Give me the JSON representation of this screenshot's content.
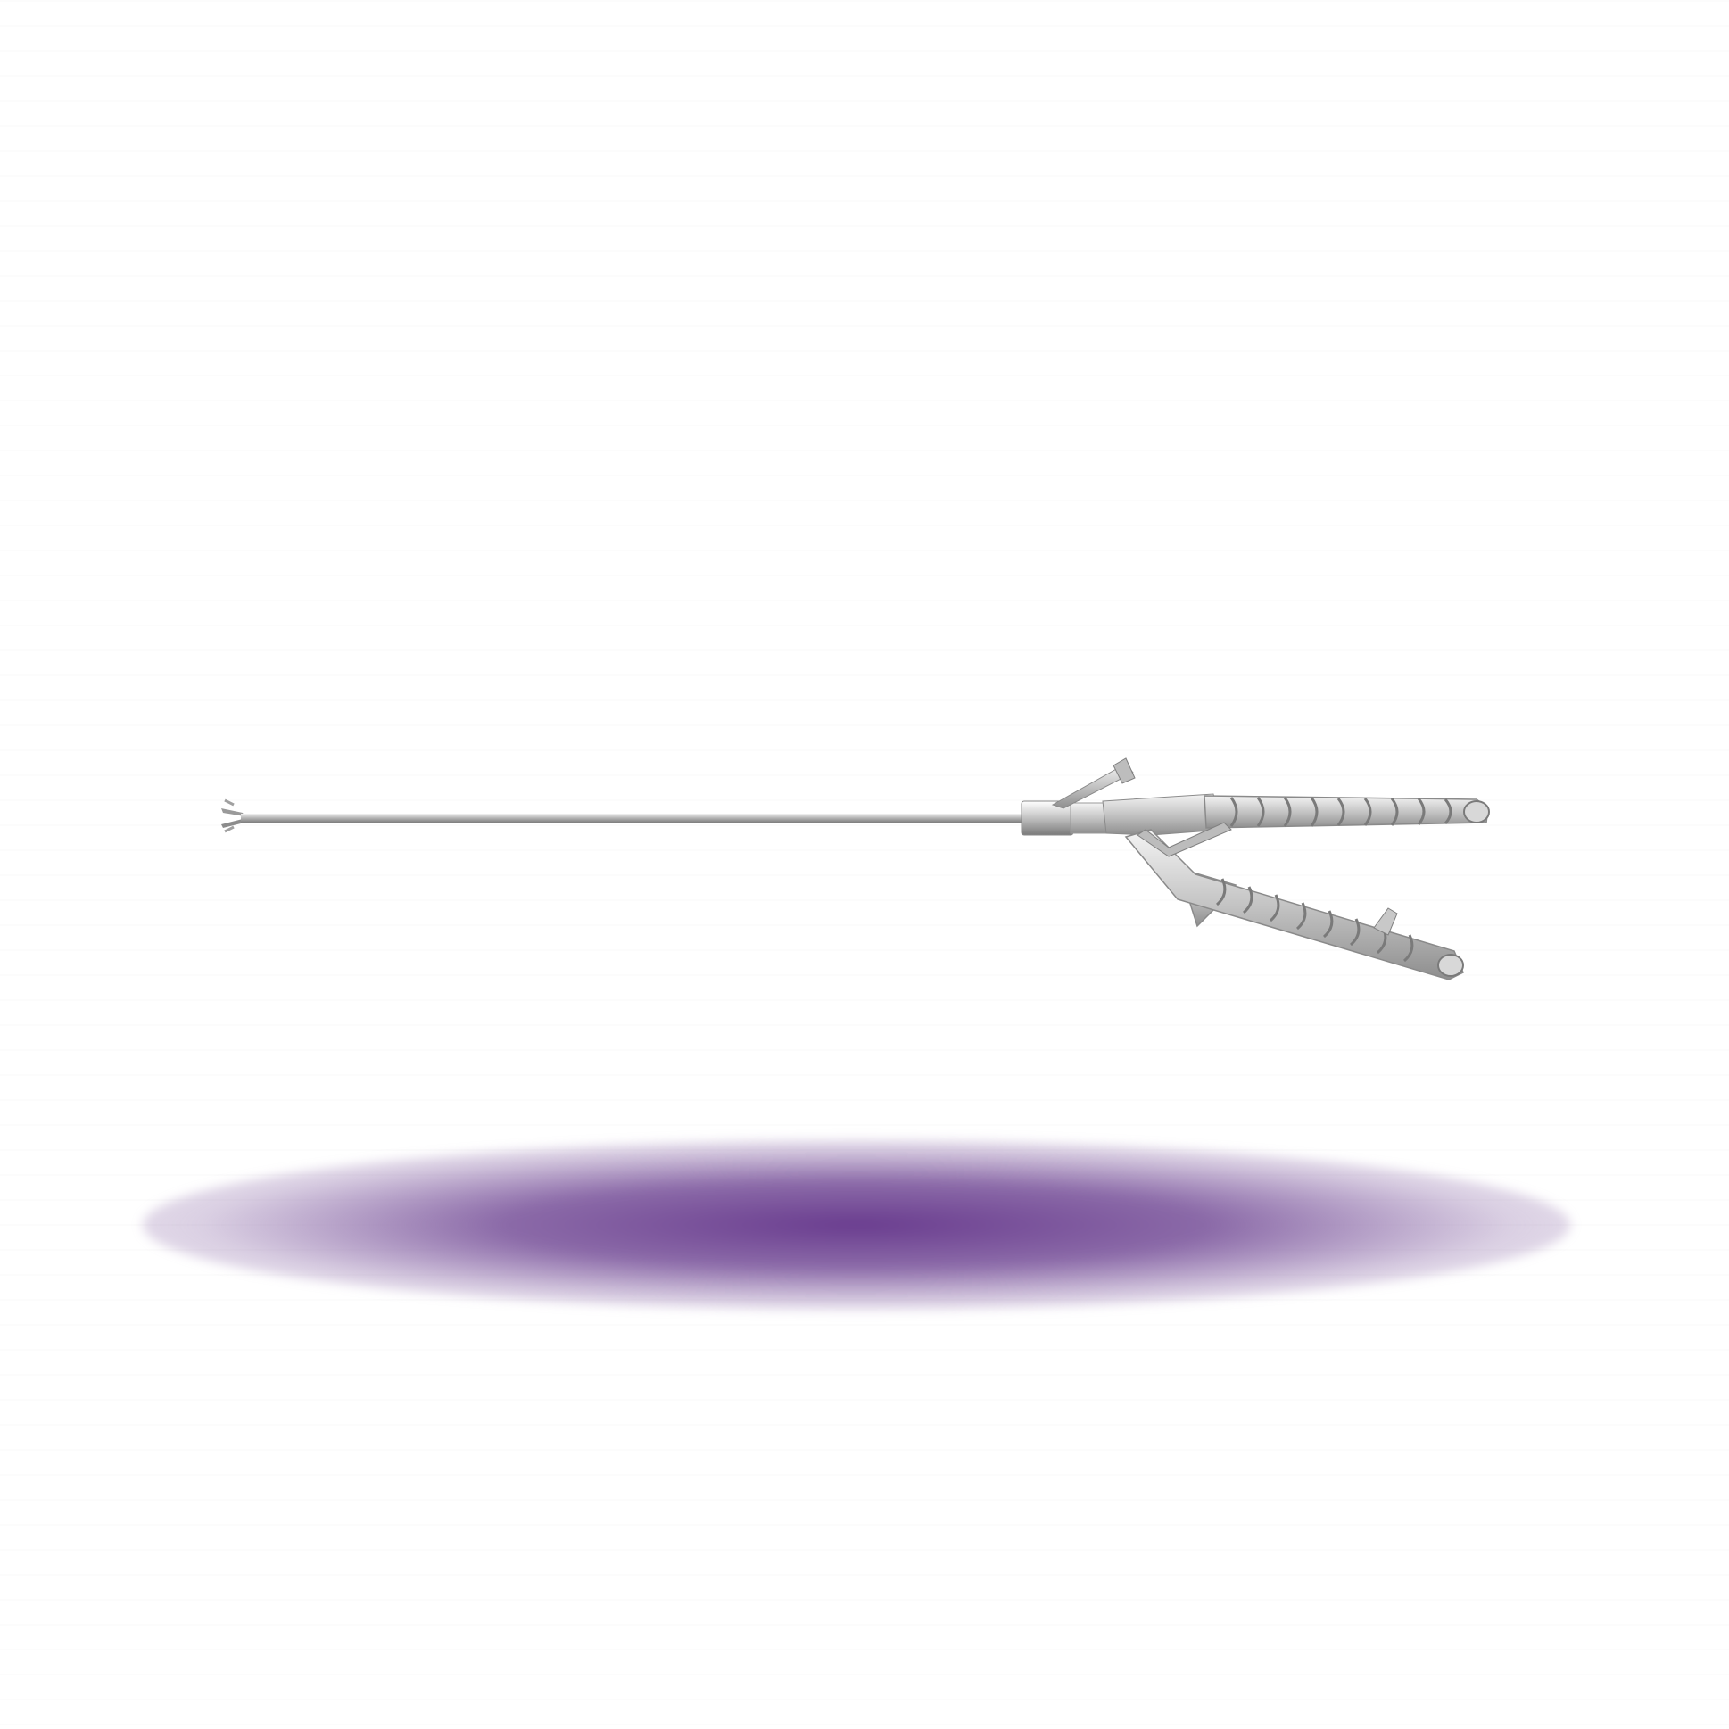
{
  "scene": {
    "subject_icon": "laparoscopic-needle-holder-icon",
    "shadow_core_color": "#6a3d8f",
    "shadow_mid_color": "#8b6aa8",
    "metal_light_color": "#e6e6e6",
    "metal_dark_color": "#8a8a8a",
    "background_color": "#ffffff"
  }
}
